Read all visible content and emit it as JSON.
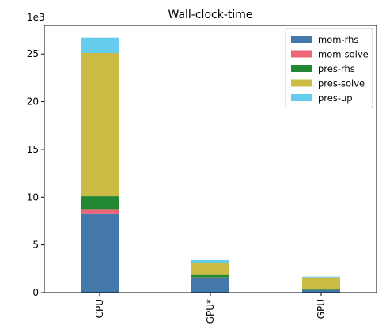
{
  "chart_data": {
    "type": "bar",
    "stacked": true,
    "title": "Wall-clock-time",
    "xlabel": "",
    "ylabel": "",
    "y_offset_label": "1e3",
    "categories": [
      "CPU",
      "GPU*",
      "GPU"
    ],
    "ylim": [
      0,
      28
    ],
    "yticks": [
      0,
      5,
      10,
      15,
      20,
      25
    ],
    "legend_position": "top-right",
    "grid": false,
    "series": [
      {
        "name": "mom-rhs",
        "color": "#4477aa",
        "values": [
          8.3,
          1.55,
          0.25
        ]
      },
      {
        "name": "mom-solve",
        "color": "#ee6677",
        "values": [
          0.45,
          0.05,
          0.02
        ]
      },
      {
        "name": "pres-rhs",
        "color": "#228833",
        "values": [
          1.35,
          0.25,
          0.08
        ]
      },
      {
        "name": "pres-solve",
        "color": "#ccbb44",
        "values": [
          15.0,
          1.25,
          1.25
        ]
      },
      {
        "name": "pres-up",
        "color": "#66ccee",
        "values": [
          1.6,
          0.3,
          0.08
        ]
      }
    ]
  }
}
